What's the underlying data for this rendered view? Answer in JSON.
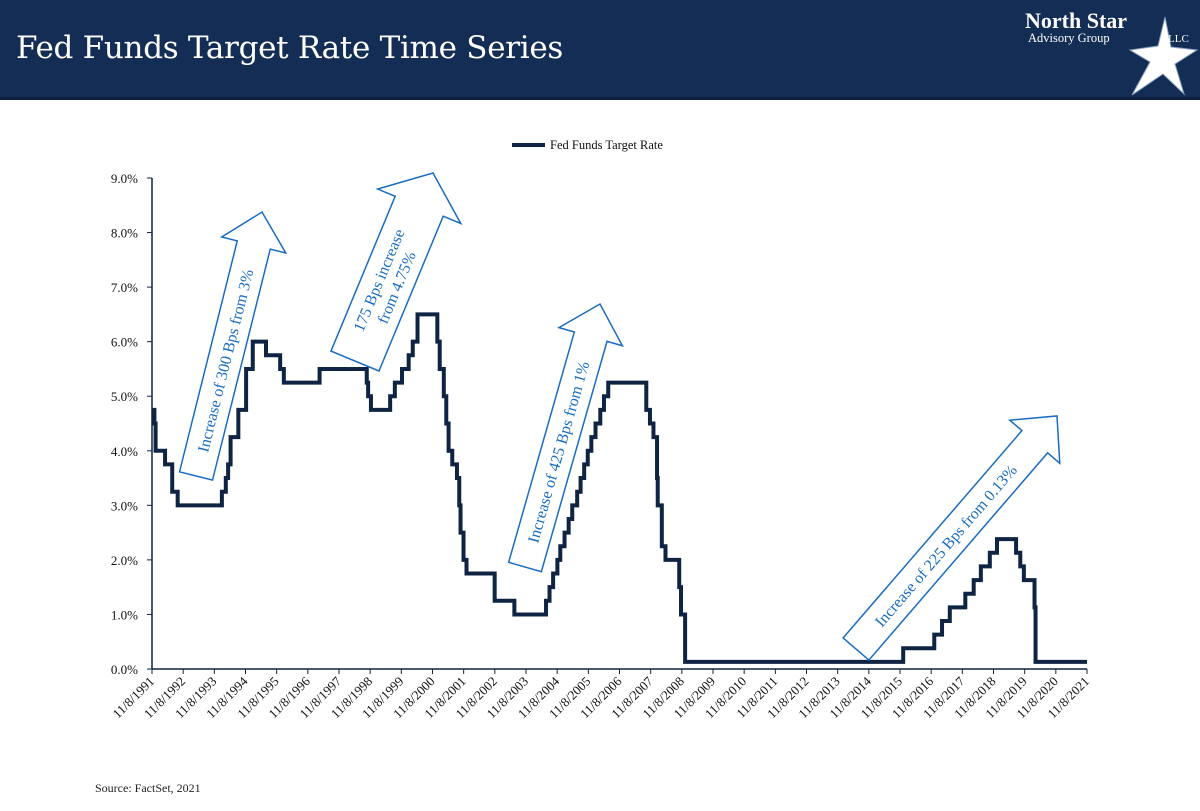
{
  "header": {
    "title": "Fed Funds Target Rate Time Series"
  },
  "logo": {
    "line1": "North Star",
    "line2": "Advisory Group",
    "line3": "LLC"
  },
  "source": "Source: FactSet, 2021",
  "colors": {
    "header_bg": "#132d55",
    "series": "#0f2342",
    "annotation": "#1a6cc0"
  },
  "chart_data": {
    "type": "line",
    "step": true,
    "title": "",
    "xlabel": "",
    "ylabel": "",
    "legend": {
      "position": "top-center",
      "entries": [
        "Fed Funds Target Rate"
      ]
    },
    "grid": false,
    "ylim": [
      0,
      9
    ],
    "yticks": [
      "0.0%",
      "1.0%",
      "2.0%",
      "3.0%",
      "4.0%",
      "5.0%",
      "6.0%",
      "7.0%",
      "8.0%",
      "9.0%"
    ],
    "xlim": [
      "1991-11-08",
      "2021-11-08"
    ],
    "xticks": [
      "11/8/1991",
      "11/8/1992",
      "11/8/1993",
      "11/8/1994",
      "11/8/1995",
      "11/8/1996",
      "11/8/1997",
      "11/8/1998",
      "11/8/1999",
      "11/8/2000",
      "11/8/2001",
      "11/8/2002",
      "11/8/2003",
      "11/8/2004",
      "11/8/2005",
      "11/8/2006",
      "11/8/2007",
      "11/8/2008",
      "11/8/2009",
      "11/8/2010",
      "11/8/2011",
      "11/8/2012",
      "11/8/2013",
      "11/8/2014",
      "11/8/2015",
      "11/8/2016",
      "11/8/2017",
      "11/8/2018",
      "11/8/2019",
      "11/8/2020",
      "11/8/2021"
    ],
    "series": [
      {
        "name": "Fed Funds Target Rate",
        "points": [
          [
            "1991-11-08",
            4.75
          ],
          [
            "1991-12-06",
            4.5
          ],
          [
            "1991-12-20",
            4.0
          ],
          [
            "1992-04-09",
            3.75
          ],
          [
            "1992-07-02",
            3.25
          ],
          [
            "1992-09-04",
            3.0
          ],
          [
            "1994-02-04",
            3.25
          ],
          [
            "1994-03-22",
            3.5
          ],
          [
            "1994-04-18",
            3.75
          ],
          [
            "1994-05-17",
            4.25
          ],
          [
            "1994-08-16",
            4.75
          ],
          [
            "1994-11-15",
            5.5
          ],
          [
            "1995-02-01",
            6.0
          ],
          [
            "1995-07-06",
            5.75
          ],
          [
            "1995-12-19",
            5.5
          ],
          [
            "1996-01-31",
            5.25
          ],
          [
            "1997-03-25",
            5.5
          ],
          [
            "1998-09-29",
            5.25
          ],
          [
            "1998-10-15",
            5.0
          ],
          [
            "1998-11-17",
            4.75
          ],
          [
            "1999-06-30",
            5.0
          ],
          [
            "1999-08-24",
            5.25
          ],
          [
            "1999-11-16",
            5.5
          ],
          [
            "2000-02-02",
            5.75
          ],
          [
            "2000-03-21",
            6.0
          ],
          [
            "2000-05-16",
            6.5
          ],
          [
            "2001-01-03",
            6.0
          ],
          [
            "2001-01-31",
            5.5
          ],
          [
            "2001-03-20",
            5.0
          ],
          [
            "2001-04-18",
            4.5
          ],
          [
            "2001-05-15",
            4.0
          ],
          [
            "2001-06-27",
            3.75
          ],
          [
            "2001-08-21",
            3.5
          ],
          [
            "2001-09-17",
            3.0
          ],
          [
            "2001-10-02",
            2.5
          ],
          [
            "2001-11-06",
            2.0
          ],
          [
            "2001-12-11",
            1.75
          ],
          [
            "2002-11-06",
            1.25
          ],
          [
            "2003-06-25",
            1.0
          ],
          [
            "2004-06-30",
            1.25
          ],
          [
            "2004-08-10",
            1.5
          ],
          [
            "2004-09-21",
            1.75
          ],
          [
            "2004-11-10",
            2.0
          ],
          [
            "2004-12-14",
            2.25
          ],
          [
            "2005-02-02",
            2.5
          ],
          [
            "2005-03-22",
            2.75
          ],
          [
            "2005-05-03",
            3.0
          ],
          [
            "2005-06-30",
            3.25
          ],
          [
            "2005-08-09",
            3.5
          ],
          [
            "2005-09-20",
            3.75
          ],
          [
            "2005-11-01",
            4.0
          ],
          [
            "2005-12-13",
            4.25
          ],
          [
            "2006-01-31",
            4.5
          ],
          [
            "2006-03-28",
            4.75
          ],
          [
            "2006-05-10",
            5.0
          ],
          [
            "2006-06-29",
            5.25
          ],
          [
            "2007-09-18",
            4.75
          ],
          [
            "2007-10-31",
            4.5
          ],
          [
            "2007-12-11",
            4.25
          ],
          [
            "2008-01-22",
            3.5
          ],
          [
            "2008-01-30",
            3.0
          ],
          [
            "2008-03-18",
            2.25
          ],
          [
            "2008-04-30",
            2.0
          ],
          [
            "2008-10-08",
            1.5
          ],
          [
            "2008-10-29",
            1.0
          ],
          [
            "2008-12-16",
            0.13
          ],
          [
            "2015-12-16",
            0.38
          ],
          [
            "2016-12-14",
            0.63
          ],
          [
            "2017-03-15",
            0.88
          ],
          [
            "2017-06-14",
            1.13
          ],
          [
            "2017-12-13",
            1.38
          ],
          [
            "2018-03-21",
            1.63
          ],
          [
            "2018-06-13",
            1.88
          ],
          [
            "2018-09-26",
            2.13
          ],
          [
            "2018-12-19",
            2.38
          ],
          [
            "2019-07-31",
            2.13
          ],
          [
            "2019-09-18",
            1.88
          ],
          [
            "2019-10-30",
            1.63
          ],
          [
            "2020-03-03",
            1.13
          ],
          [
            "2020-03-15",
            0.13
          ],
          [
            "2021-11-08",
            0.13
          ]
        ]
      }
    ],
    "annotations": [
      {
        "lines": [
          "Increase of 300 Bps from 3%"
        ]
      },
      {
        "lines": [
          "175 Bps increase",
          "from 4.75%"
        ]
      },
      {
        "lines": [
          "Increase of 425 Bps from 1%"
        ]
      },
      {
        "lines": [
          "Increase of 225 Bps from 0.13%"
        ]
      }
    ]
  }
}
